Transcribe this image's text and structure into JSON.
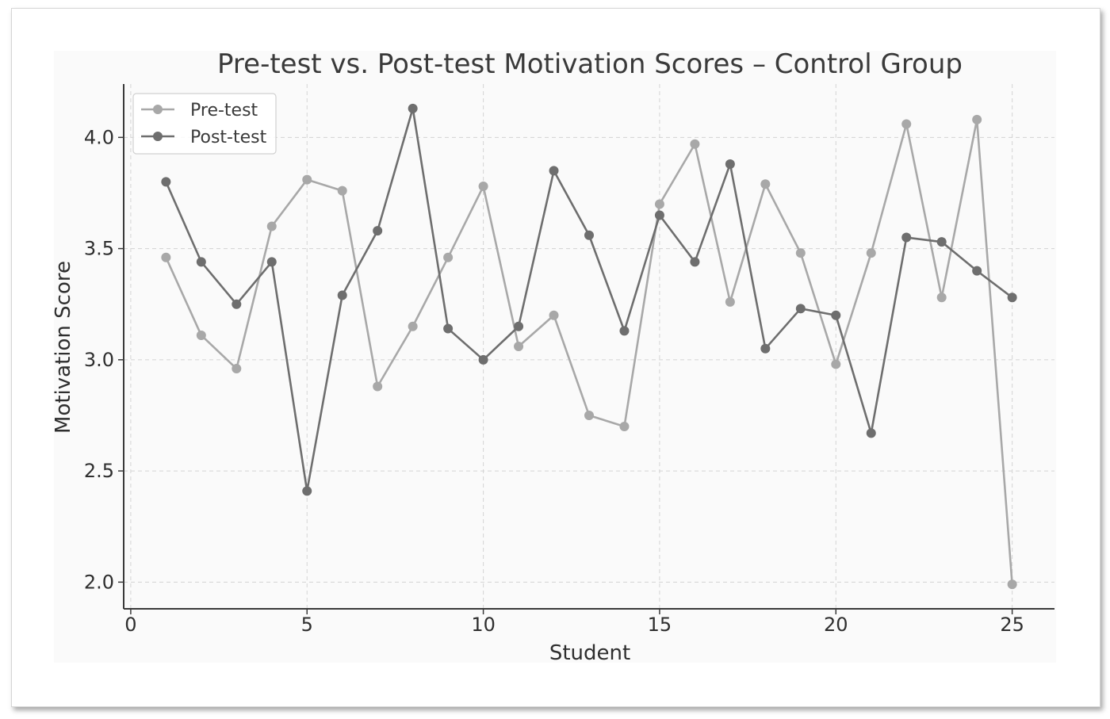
{
  "chart_data": {
    "type": "line",
    "title": "Pre-test vs. Post-test Motivation Scores – Control Group",
    "xlabel": "Student",
    "ylabel": "Motivation Score",
    "xlim": [
      -0.2,
      26.2
    ],
    "ylim": [
      1.88,
      4.24
    ],
    "xticks": [
      0,
      5,
      10,
      15,
      20,
      25
    ],
    "yticks": [
      2.0,
      2.5,
      3.0,
      3.5,
      4.0
    ],
    "xtick_labels": [
      "0",
      "5",
      "10",
      "15",
      "20",
      "25"
    ],
    "ytick_labels": [
      "2.0",
      "2.5",
      "3.0",
      "3.5",
      "4.0"
    ],
    "grid": true,
    "legend_position": "top-left",
    "x": [
      1,
      2,
      3,
      4,
      5,
      6,
      7,
      8,
      9,
      10,
      11,
      12,
      13,
      14,
      15,
      16,
      17,
      18,
      19,
      20,
      21,
      22,
      23,
      24,
      25
    ],
    "series": [
      {
        "name": "Pre-test",
        "color": "#a8a8a8",
        "values": [
          3.46,
          3.11,
          2.96,
          3.6,
          3.81,
          3.76,
          2.88,
          3.15,
          3.46,
          3.78,
          3.06,
          3.2,
          2.75,
          2.7,
          3.7,
          3.97,
          3.26,
          3.79,
          3.48,
          2.98,
          3.48,
          4.06,
          3.28,
          4.08,
          1.99
        ]
      },
      {
        "name": "Post-test",
        "color": "#6e6e6e",
        "values": [
          3.8,
          3.44,
          3.25,
          3.44,
          2.41,
          3.29,
          3.58,
          4.13,
          3.14,
          3.0,
          3.15,
          3.85,
          3.56,
          3.13,
          3.65,
          3.44,
          3.88,
          3.05,
          3.23,
          3.2,
          2.67,
          3.55,
          3.53,
          3.4,
          3.28
        ]
      }
    ]
  }
}
